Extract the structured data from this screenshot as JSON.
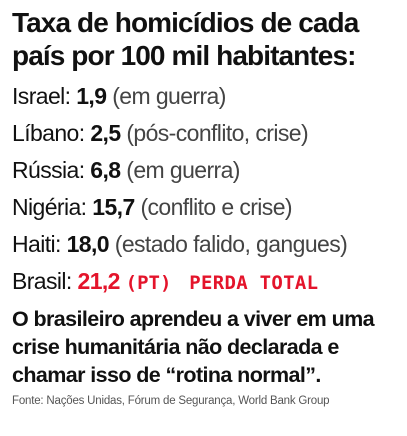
{
  "title": "Taxa de homicídios de cada país por 100 mil habitantes:",
  "rows": [
    {
      "country": "Israel:",
      "value": "1,9",
      "note": "(em guerra)"
    },
    {
      "country": "Líbano:",
      "value": "2,5",
      "note": "(pós-conflito, crise)"
    },
    {
      "country": "Rússia:",
      "value": "6,8",
      "note": "(em guerra)"
    },
    {
      "country": "Nigéria:",
      "value": "15,7",
      "note": "(conflito e crise)"
    },
    {
      "country": "Haiti:",
      "value": "18,0",
      "note": "(estado falido, gangues)"
    },
    {
      "country": "Brasil:",
      "value": "21,2",
      "note": "(PT)",
      "tag": "PERDA TOTAL"
    }
  ],
  "conclusion": "O brasileiro aprendeu a viver em uma crise humanitária não declarada e chamar isso de “rotina normal”.",
  "source": "Fonte: Nações Unidas, Fórum de Segurança, World Bank Group",
  "colors": {
    "text": "#111111",
    "highlight": "#e4142b",
    "background": "#ffffff"
  }
}
